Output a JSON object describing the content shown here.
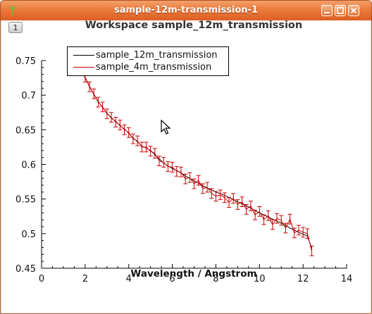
{
  "window": {
    "title": "sample-12m-transmission-1",
    "layer_tab": "1"
  },
  "colors": {
    "series_1": "#000000",
    "series_2": "#cc0000",
    "titlebar": "#e46d31"
  },
  "chart_data": {
    "type": "line",
    "title": "Workspace sample_12m_transmission",
    "xlabel": "Wavelength / Angstrom",
    "ylabel": "",
    "xlim": [
      0,
      14
    ],
    "ylim": [
      0.45,
      0.75
    ],
    "x_ticks": [
      "0",
      "2",
      "4",
      "6",
      "8",
      "10",
      "12",
      "14"
    ],
    "y_ticks": [
      "0.45",
      "0.5",
      "0.55",
      "0.6",
      "0.65",
      "0.7",
      "0.75"
    ],
    "grid": false,
    "legend_position": "top-left",
    "series": [
      {
        "name": "sample_12m_transmission",
        "color": "#000000",
        "x": [
          1.8,
          2.0,
          2.2,
          2.4,
          2.6,
          2.8,
          3.0,
          3.2,
          3.4,
          3.6,
          3.8,
          4.0,
          4.2,
          4.4,
          4.6,
          4.8,
          5.0,
          5.2,
          5.4,
          5.6,
          5.8,
          6.0,
          6.2,
          6.4,
          6.6,
          6.8,
          7.0,
          7.2,
          7.4,
          7.6,
          7.8,
          8.0,
          8.2,
          8.4,
          8.6,
          8.8,
          9.0,
          9.2,
          9.4,
          9.6,
          9.8,
          10.0,
          10.2,
          10.4,
          10.6,
          10.8,
          11.0,
          11.2,
          11.4,
          11.6,
          11.8,
          12.0,
          12.2,
          12.4
        ],
        "y": [
          0.738,
          0.725,
          0.713,
          0.701,
          0.691,
          0.682,
          0.674,
          0.667,
          0.662,
          0.656,
          0.651,
          0.645,
          0.638,
          0.633,
          0.626,
          0.624,
          0.62,
          0.614,
          0.608,
          0.602,
          0.598,
          0.594,
          0.591,
          0.588,
          0.583,
          0.58,
          0.576,
          0.573,
          0.569,
          0.566,
          0.563,
          0.56,
          0.558,
          0.555,
          0.552,
          0.549,
          0.546,
          0.543,
          0.54,
          0.537,
          0.533,
          0.53,
          0.527,
          0.524,
          0.521,
          0.518,
          0.515,
          0.512,
          0.508,
          0.505,
          0.502,
          0.499,
          0.497,
          0.478
        ]
      },
      {
        "name": "sample_4m_transmission",
        "color": "#cc0000",
        "x": [
          1.8,
          2.0,
          2.2,
          2.4,
          2.6,
          2.8,
          3.0,
          3.2,
          3.4,
          3.6,
          3.8,
          4.0,
          4.2,
          4.4,
          4.6,
          4.8,
          5.0,
          5.2,
          5.4,
          5.6,
          5.8,
          6.0,
          6.2,
          6.4,
          6.6,
          6.8,
          7.0,
          7.2,
          7.4,
          7.6,
          7.8,
          8.0,
          8.2,
          8.4,
          8.6,
          8.8,
          9.0,
          9.2,
          9.4,
          9.6,
          9.8,
          10.0,
          10.2,
          10.4,
          10.6,
          10.8,
          11.0,
          11.2,
          11.4,
          11.6,
          11.8,
          12.0,
          12.2,
          12.4
        ],
        "y": [
          0.738,
          0.726,
          0.712,
          0.702,
          0.69,
          0.683,
          0.673,
          0.668,
          0.661,
          0.657,
          0.65,
          0.646,
          0.637,
          0.634,
          0.625,
          0.625,
          0.619,
          0.616,
          0.605,
          0.603,
          0.597,
          0.596,
          0.59,
          0.589,
          0.579,
          0.581,
          0.572,
          0.577,
          0.565,
          0.567,
          0.558,
          0.554,
          0.556,
          0.552,
          0.545,
          0.551,
          0.542,
          0.546,
          0.535,
          0.54,
          0.527,
          0.532,
          0.52,
          0.526,
          0.513,
          0.522,
          0.519,
          0.508,
          0.521,
          0.501,
          0.505,
          0.502,
          0.5,
          0.475
        ],
        "yerr": 0.007
      }
    ]
  }
}
